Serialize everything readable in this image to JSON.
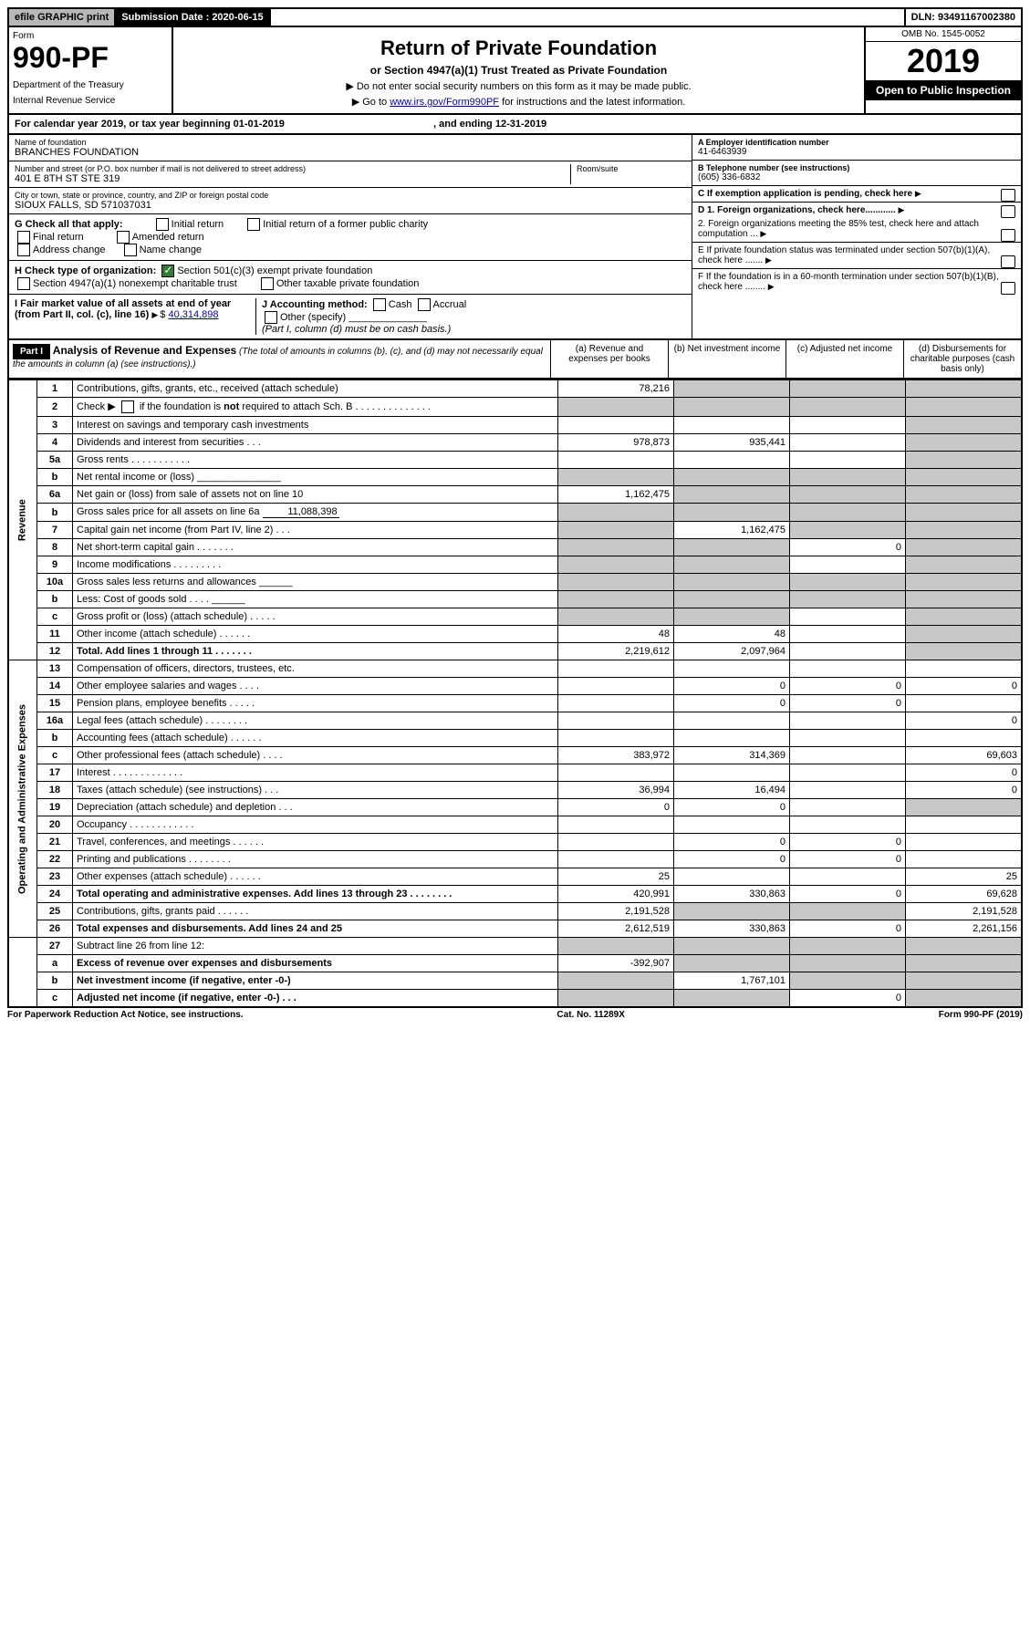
{
  "topbar": {
    "efile": "efile GRAPHIC print",
    "subdate_label": "Submission Date : 2020-06-15",
    "dln": "DLN: 93491167002380"
  },
  "header": {
    "form_word": "Form",
    "form_no": "990-PF",
    "dept": "Department of the Treasury",
    "irs": "Internal Revenue Service",
    "title": "Return of Private Foundation",
    "subtitle": "or Section 4947(a)(1) Trust Treated as Private Foundation",
    "note1": "▶ Do not enter social security numbers on this form as it may be made public.",
    "note2_pre": "▶ Go to ",
    "note2_link": "www.irs.gov/Form990PF",
    "note2_post": " for instructions and the latest information.",
    "omb": "OMB No. 1545-0052",
    "year": "2019",
    "open": "Open to Public Inspection"
  },
  "cal": {
    "text_pre": "For calendar year 2019, or tax year beginning ",
    "begin": "01-01-2019",
    "mid": " , and ending ",
    "end": "12-31-2019"
  },
  "info": {
    "name_label": "Name of foundation",
    "name": "BRANCHES FOUNDATION",
    "addr_label": "Number and street (or P.O. box number if mail is not delivered to street address)",
    "addr": "401 E 8TH ST STE 319",
    "room_label": "Room/suite",
    "city_label": "City or town, state or province, country, and ZIP or foreign postal code",
    "city": "SIOUX FALLS, SD  571037031",
    "a_label": "A Employer identification number",
    "a_val": "41-6463939",
    "b_label": "B Telephone number (see instructions)",
    "b_val": "(605) 336-6832",
    "c_label": "C If exemption application is pending, check here",
    "d1": "D 1. Foreign organizations, check here............",
    "d2": "2. Foreign organizations meeting the 85% test, check here and attach computation ...",
    "e": "E  If private foundation status was terminated under section 507(b)(1)(A), check here .......",
    "f": "F  If the foundation is in a 60-month termination under section 507(b)(1)(B), check here ........"
  },
  "g": {
    "label": "G Check all that apply:",
    "items": [
      "Initial return",
      "Initial return of a former public charity",
      "Final return",
      "Amended return",
      "Address change",
      "Name change"
    ]
  },
  "h": {
    "label": "H Check type of organization:",
    "opt1": "Section 501(c)(3) exempt private foundation",
    "opt2": "Section 4947(a)(1) nonexempt charitable trust",
    "opt3": "Other taxable private foundation"
  },
  "i": {
    "label": "I Fair market value of all assets at end of year (from Part II, col. (c), line 16)",
    "val": "40,314,898"
  },
  "j": {
    "label": "J Accounting method:",
    "cash": "Cash",
    "accrual": "Accrual",
    "other": "Other (specify)",
    "note": "(Part I, column (d) must be on cash basis.)"
  },
  "part1": {
    "label": "Part I",
    "title": "Analysis of Revenue and Expenses",
    "note": "(The total of amounts in columns (b), (c), and (d) may not necessarily equal the amounts in column (a) (see instructions).)",
    "col_a": "(a) Revenue and expenses per books",
    "col_b": "(b) Net investment income",
    "col_c": "(c) Adjusted net income",
    "col_d": "(d) Disbursements for charitable purposes (cash basis only)"
  },
  "sections": {
    "revenue": "Revenue",
    "opex": "Operating and Administrative Expenses"
  },
  "lines": [
    {
      "n": "1",
      "desc": "Contributions, gifts, grants, etc., received (attach schedule)",
      "a": "78,216",
      "b": "",
      "c": "",
      "d": "",
      "db": true,
      "dc": true,
      "dd": true
    },
    {
      "n": "2",
      "desc": "Check ▶ ☐ if the foundation is not required to attach Sch. B",
      "a": "",
      "b": "",
      "c": "",
      "d": "",
      "da": true,
      "db": true,
      "dc": true,
      "dd": true,
      "html": true
    },
    {
      "n": "3",
      "desc": "Interest on savings and temporary cash investments",
      "a": "",
      "b": "",
      "c": "",
      "d": "",
      "dd": true
    },
    {
      "n": "4",
      "desc": "Dividends and interest from securities   .   .   .",
      "a": "978,873",
      "b": "935,441",
      "c": "",
      "d": "",
      "dd": true
    },
    {
      "n": "5a",
      "desc": "Gross rents   .   .   .   .   .   .   .   .   .   .   .",
      "a": "",
      "b": "",
      "c": "",
      "d": "",
      "dd": true
    },
    {
      "n": "b",
      "desc": "Net rental income or (loss)  _______________",
      "a": "",
      "b": "",
      "c": "",
      "d": "",
      "da": true,
      "db": true,
      "dc": true,
      "dd": true
    },
    {
      "n": "6a",
      "desc": "Net gain or (loss) from sale of assets not on line 10",
      "a": "1,162,475",
      "b": "",
      "c": "",
      "d": "",
      "db": true,
      "dc": true,
      "dd": true
    },
    {
      "n": "b",
      "desc": "Gross sales price for all assets on line 6a <span class='inline-input'>11,088,398</span>",
      "a": "",
      "b": "",
      "c": "",
      "d": "",
      "da": true,
      "db": true,
      "dc": true,
      "dd": true,
      "raw": true
    },
    {
      "n": "7",
      "desc": "Capital gain net income (from Part IV, line 2)   .   .   .",
      "a": "",
      "b": "1,162,475",
      "c": "",
      "d": "",
      "da": true,
      "dc": true,
      "dd": true
    },
    {
      "n": "8",
      "desc": "Net short-term capital gain   .   .   .   .   .   .   .",
      "a": "",
      "b": "",
      "c": "0",
      "d": "",
      "da": true,
      "db": true,
      "dd": true
    },
    {
      "n": "9",
      "desc": "Income modifications   .   .   .   .   .   .   .   .   .",
      "a": "",
      "b": "",
      "c": "",
      "d": "",
      "da": true,
      "db": true,
      "dd": true
    },
    {
      "n": "10a",
      "desc": "Gross sales less returns and allowances  ______",
      "a": "",
      "b": "",
      "c": "",
      "d": "",
      "da": true,
      "db": true,
      "dc": true,
      "dd": true
    },
    {
      "n": "b",
      "desc": "Less: Cost of goods sold   .   .   .   .  ______",
      "a": "",
      "b": "",
      "c": "",
      "d": "",
      "da": true,
      "db": true,
      "dc": true,
      "dd": true
    },
    {
      "n": "c",
      "desc": "Gross profit or (loss) (attach schedule)   .   .   .   .   .",
      "a": "",
      "b": "",
      "c": "",
      "d": "",
      "da": true,
      "db": true,
      "dd": true
    },
    {
      "n": "11",
      "desc": "Other income (attach schedule)   .   .   .   .   .   .",
      "a": "48",
      "b": "48",
      "c": "",
      "d": "",
      "dd": true
    },
    {
      "n": "12",
      "desc": "Total. Add lines 1 through 11   .   .   .   .   .   .   .",
      "a": "2,219,612",
      "b": "2,097,964",
      "c": "",
      "d": "",
      "bold": true,
      "dd": true
    }
  ],
  "oplines": [
    {
      "n": "13",
      "desc": "Compensation of officers, directors, trustees, etc.",
      "a": "",
      "b": "",
      "c": "",
      "d": ""
    },
    {
      "n": "14",
      "desc": "Other employee salaries and wages   .   .   .   .",
      "a": "",
      "b": "0",
      "c": "0",
      "d": "0"
    },
    {
      "n": "15",
      "desc": "Pension plans, employee benefits   .   .   .   .   .",
      "a": "",
      "b": "0",
      "c": "0",
      "d": ""
    },
    {
      "n": "16a",
      "desc": "Legal fees (attach schedule)   .   .   .   .   .   .   .   .",
      "a": "",
      "b": "",
      "c": "",
      "d": "0"
    },
    {
      "n": "b",
      "desc": "Accounting fees (attach schedule)   .   .   .   .   .   .",
      "a": "",
      "b": "",
      "c": "",
      "d": ""
    },
    {
      "n": "c",
      "desc": "Other professional fees (attach schedule)   .   .   .   .",
      "a": "383,972",
      "b": "314,369",
      "c": "",
      "d": "69,603"
    },
    {
      "n": "17",
      "desc": "Interest   .   .   .   .   .   .   .   .   .   .   .   .   .",
      "a": "",
      "b": "",
      "c": "",
      "d": "0"
    },
    {
      "n": "18",
      "desc": "Taxes (attach schedule) (see instructions)   .   .   .",
      "a": "36,994",
      "b": "16,494",
      "c": "",
      "d": "0"
    },
    {
      "n": "19",
      "desc": "Depreciation (attach schedule) and depletion   .   .   .",
      "a": "0",
      "b": "0",
      "c": "",
      "d": "",
      "dd": true
    },
    {
      "n": "20",
      "desc": "Occupancy   .   .   .   .   .   .   .   .   .   .   .   .",
      "a": "",
      "b": "",
      "c": "",
      "d": ""
    },
    {
      "n": "21",
      "desc": "Travel, conferences, and meetings   .   .   .   .   .   .",
      "a": "",
      "b": "0",
      "c": "0",
      "d": ""
    },
    {
      "n": "22",
      "desc": "Printing and publications   .   .   .   .   .   .   .   .",
      "a": "",
      "b": "0",
      "c": "0",
      "d": ""
    },
    {
      "n": "23",
      "desc": "Other expenses (attach schedule)   .   .   .   .   .   .",
      "a": "25",
      "b": "",
      "c": "",
      "d": "25"
    },
    {
      "n": "24",
      "desc": "Total operating and administrative expenses. Add lines 13 through 23   .   .   .   .   .   .   .   .",
      "a": "420,991",
      "b": "330,863",
      "c": "0",
      "d": "69,628",
      "bold": true
    },
    {
      "n": "25",
      "desc": "Contributions, gifts, grants paid   .   .   .   .   .   .",
      "a": "2,191,528",
      "b": "",
      "c": "",
      "d": "2,191,528",
      "db": true,
      "dc": true
    },
    {
      "n": "26",
      "desc": "Total expenses and disbursements. Add lines 24 and 25",
      "a": "2,612,519",
      "b": "330,863",
      "c": "0",
      "d": "2,261,156",
      "bold": true
    }
  ],
  "line27": [
    {
      "n": "27",
      "desc": "Subtract line 26 from line 12:",
      "a": "",
      "b": "",
      "c": "",
      "d": "",
      "da": true,
      "db": true,
      "dc": true,
      "dd": true
    },
    {
      "n": "a",
      "desc": "Excess of revenue over expenses and disbursements",
      "a": "-392,907",
      "b": "",
      "c": "",
      "d": "",
      "bold": true,
      "db": true,
      "dc": true,
      "dd": true
    },
    {
      "n": "b",
      "desc": "Net investment income (if negative, enter -0-)",
      "a": "",
      "b": "1,767,101",
      "c": "",
      "d": "",
      "bold": true,
      "da": true,
      "dc": true,
      "dd": true
    },
    {
      "n": "c",
      "desc": "Adjusted net income (if negative, enter -0-)   .   .   .",
      "a": "",
      "b": "",
      "c": "0",
      "d": "",
      "bold": true,
      "da": true,
      "db": true,
      "dd": true
    }
  ],
  "footer": {
    "left": "For Paperwork Reduction Act Notice, see instructions.",
    "mid": "Cat. No. 11289X",
    "right": "Form 990-PF (2019)"
  }
}
